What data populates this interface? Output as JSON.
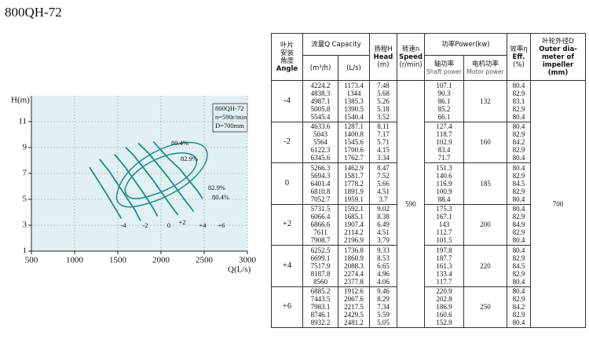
{
  "title": "800QH-72",
  "chart": {
    "type": "line",
    "color": "#1a8c8c",
    "grid": true,
    "x_label": "Q(L/s)",
    "y_label": "H(m)",
    "xlim": [
      500,
      3000
    ],
    "xticks": [
      500,
      1000,
      1500,
      2000,
      2500,
      3000
    ],
    "ylim": [
      1,
      13
    ],
    "yticks": [
      1,
      3,
      5,
      7,
      9,
      11
    ],
    "legend_lines": [
      "800QH-72",
      "n=590r/min",
      "D=700mm"
    ],
    "efficiency_labels": [
      "80.4%",
      "82.9%",
      "82.9%",
      "80.4%"
    ]
  },
  "table": {
    "header": {
      "angle": [
        "叶片",
        "安装",
        "角度",
        "Angle"
      ],
      "capacity": "流量Q Capacity",
      "capacity_units": [
        "(m³/h)",
        "(L/s)"
      ],
      "head": [
        "扬程H",
        "Head",
        "(m)"
      ],
      "speed": [
        "转速n",
        "Speed",
        "(r/min)"
      ],
      "power": "功率Power(kw)",
      "shaft_power": [
        "轴功率",
        "Shaft power"
      ],
      "motor_power": [
        "电机功率",
        "Motor power"
      ],
      "efficiency": [
        "效率η",
        "Eff.",
        "(%)"
      ],
      "impeller": [
        "叶轮外径D",
        "Outer dia-",
        "meter of",
        "impeller",
        "(mm)"
      ]
    },
    "speed": 590,
    "impeller_diameter": 700,
    "groups": [
      {
        "angle": "-4",
        "flow_m3h": [
          4224.2,
          4838.3,
          4987.1,
          5005.8,
          5545.4
        ],
        "flow_ls": [
          1173.4,
          1344,
          1385.3,
          1390.5,
          1540.4
        ],
        "head": [
          7.48,
          5.68,
          5.26,
          5.18,
          3.52
        ],
        "shaft_power": [
          107.1,
          90.3,
          86.1,
          85.2,
          66.1
        ],
        "motor_power": 132,
        "efficiency": [
          80.4,
          82.9,
          83.1,
          82.9,
          80.4
        ]
      },
      {
        "angle": "-2",
        "flow_m3h": [
          4633.6,
          5043,
          5564,
          6122.3,
          6345.6
        ],
        "flow_ls": [
          1287.1,
          1400.8,
          1545.6,
          1700.6,
          1762.7
        ],
        "head": [
          8.11,
          7.17,
          5.71,
          4.15,
          3.34
        ],
        "shaft_power": [
          127.4,
          118.7,
          102.9,
          83.4,
          71.7
        ],
        "motor_power": 160,
        "efficiency": [
          80.4,
          82.9,
          84.2,
          82.9,
          80.4
        ]
      },
      {
        "angle": "0",
        "flow_m3h": [
          5266.3,
          5694.3,
          6401.4,
          6810.8,
          7052.7
        ],
        "flow_ls": [
          1462.9,
          1581.7,
          1778.2,
          1891.9,
          1959.1
        ],
        "head": [
          8.47,
          7.52,
          5.66,
          4.51,
          3.7
        ],
        "shaft_power": [
          151.3,
          140.6,
          116.9,
          100.9,
          88.4
        ],
        "motor_power": 185,
        "efficiency": [
          80.4,
          82.9,
          84.5,
          82.9,
          80.4
        ]
      },
      {
        "angle": "+2",
        "flow_m3h": [
          5731.5,
          6066.4,
          6866.6,
          7611,
          7908.7
        ],
        "flow_ls": [
          1592.1,
          1685.1,
          1907.4,
          2114.2,
          2196.9
        ],
        "head": [
          9.02,
          8.38,
          6.49,
          4.51,
          3.79
        ],
        "shaft_power": [
          175.3,
          167.1,
          143,
          112.7,
          101.5
        ],
        "motor_power": 200,
        "efficiency": [
          80.4,
          82.9,
          84.9,
          82.9,
          80.4
        ]
      },
      {
        "angle": "+4",
        "flow_m3h": [
          6252.5,
          6699.1,
          7517.9,
          8187.8,
          8560
        ],
        "flow_ls": [
          1736.8,
          1860.9,
          2088.3,
          2274.4,
          2377.8
        ],
        "head": [
          9.33,
          8.53,
          6.65,
          4.96,
          4.06
        ],
        "shaft_power": [
          197.8,
          187.7,
          161.3,
          133.4,
          117.7
        ],
        "motor_power": 220,
        "efficiency": [
          80.4,
          82.9,
          84.5,
          82.9,
          80.4
        ]
      },
      {
        "angle": "+6",
        "flow_m3h": [
          6885.2,
          7443.5,
          7983.1,
          8746.1,
          8932.2
        ],
        "flow_ls": [
          1912.6,
          2067.6,
          2217.5,
          2429.5,
          2481.2
        ],
        "head": [
          9.46,
          8.29,
          7.34,
          5.59,
          5.05
        ],
        "shaft_power": [
          220.9,
          202.8,
          186.9,
          160.6,
          152.9
        ],
        "motor_power": 250,
        "efficiency": [
          80.4,
          82.9,
          84.2,
          82.9,
          80.4
        ]
      }
    ]
  }
}
